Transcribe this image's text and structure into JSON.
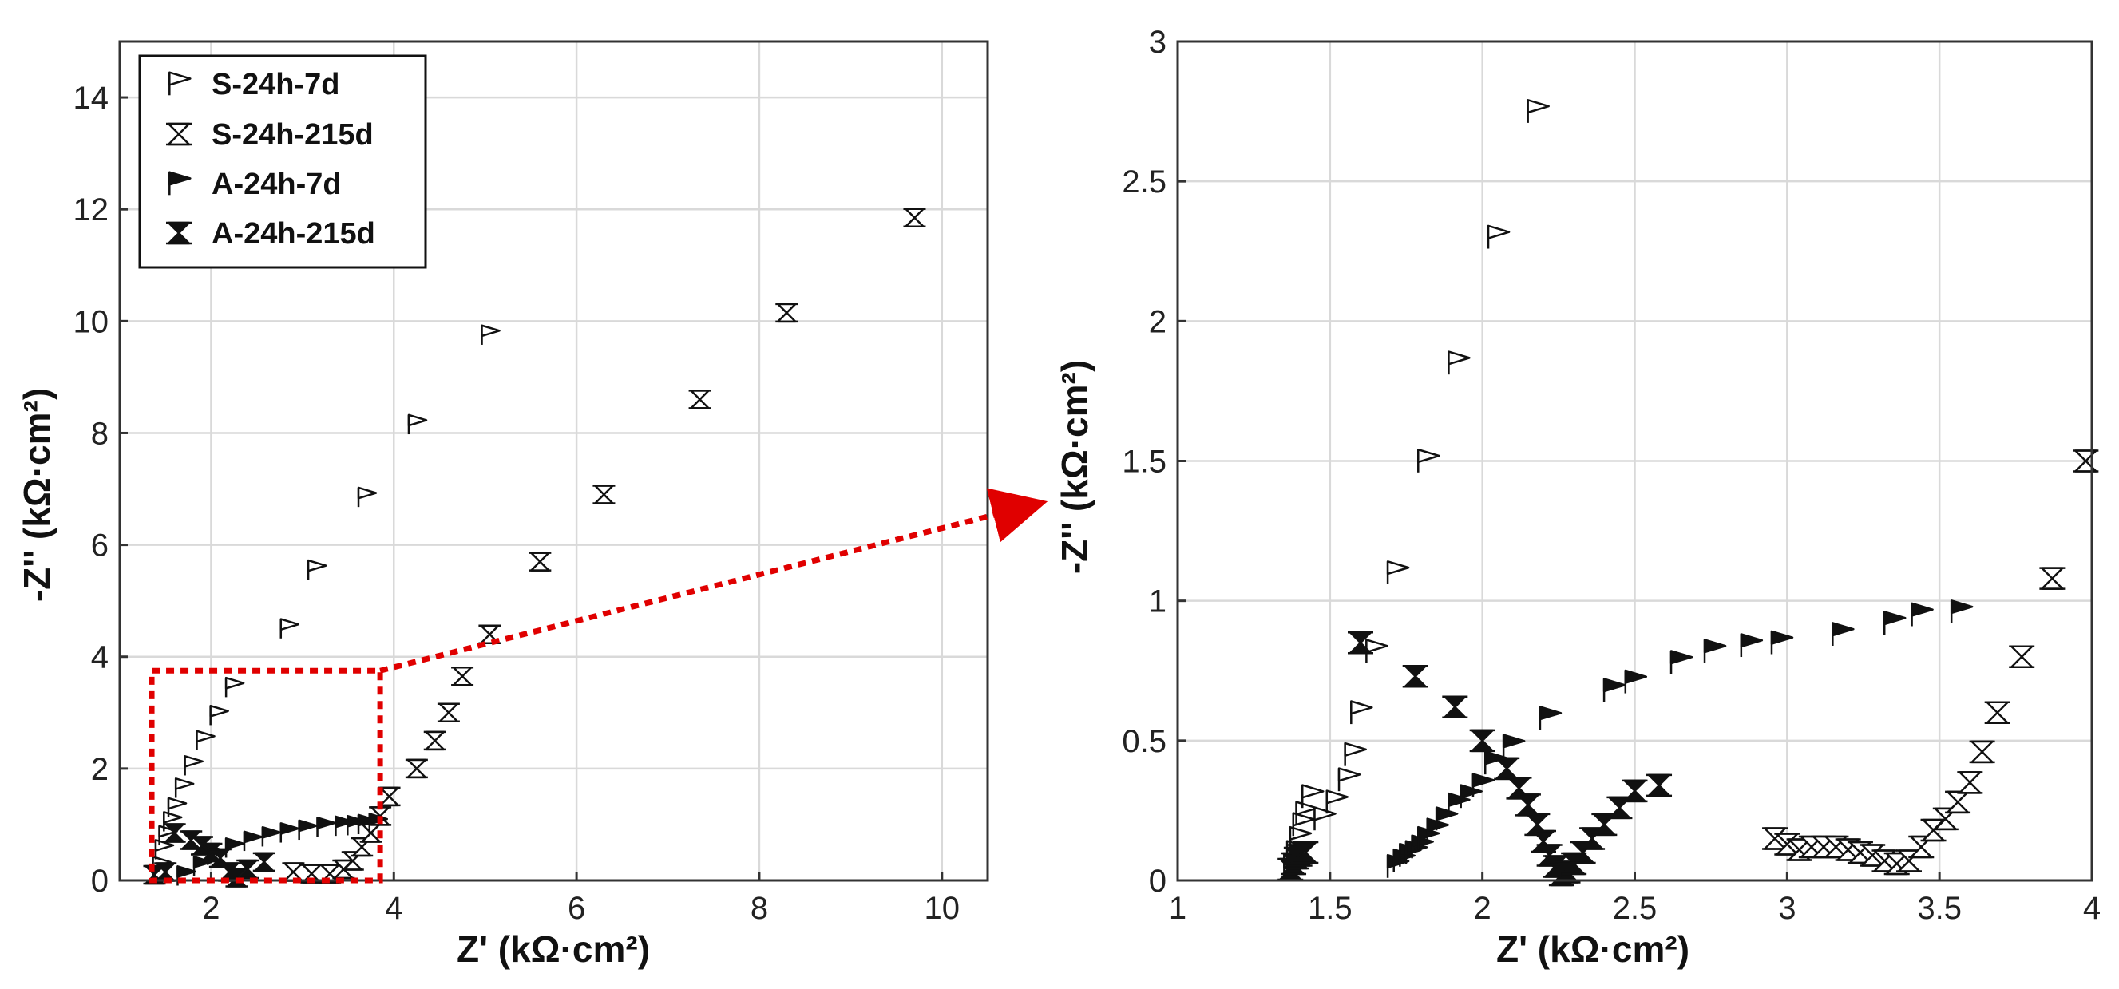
{
  "colors": {
    "grid": "#d9d9d9",
    "frame": "#333333",
    "marker": "#111111",
    "zoom": "#e00000"
  },
  "chart_data": [
    {
      "type": "scatter",
      "xlabel": "Z' (kΩ·cm²)",
      "ylabel": "-Z'' (kΩ·cm²)",
      "xlim": [
        1.0,
        10.5
      ],
      "ylim": [
        0,
        15
      ],
      "xticks": [
        2,
        4,
        6,
        8,
        10
      ],
      "yticks": [
        0,
        2,
        4,
        6,
        8,
        10,
        12,
        14
      ],
      "grid": true,
      "legend": "top-left",
      "zoom_box": {
        "x": [
          1.35,
          3.85
        ],
        "y": [
          0,
          3.75
        ]
      },
      "series": [
        {
          "name": "S-24h-7d",
          "marker": "flag-open",
          "points": [
            [
              1.45,
              0.25
            ],
            [
              1.48,
              0.55
            ],
            [
              1.52,
              0.8
            ],
            [
              1.57,
              1.05
            ],
            [
              1.62,
              1.3
            ],
            [
              1.7,
              1.65
            ],
            [
              1.8,
              2.05
            ],
            [
              1.93,
              2.5
            ],
            [
              2.08,
              2.95
            ],
            [
              2.25,
              3.45
            ],
            [
              2.85,
              4.5
            ],
            [
              3.15,
              5.55
            ],
            [
              3.7,
              6.85
            ],
            [
              4.25,
              8.15
            ],
            [
              5.05,
              9.75
            ]
          ]
        },
        {
          "name": "S-24h-215d",
          "marker": "hourglass-open",
          "points": [
            [
              2.9,
              0.15
            ],
            [
              3.1,
              0.12
            ],
            [
              3.3,
              0.12
            ],
            [
              3.45,
              0.2
            ],
            [
              3.55,
              0.35
            ],
            [
              3.65,
              0.6
            ],
            [
              3.75,
              0.85
            ],
            [
              3.85,
              1.15
            ],
            [
              3.95,
              1.5
            ],
            [
              4.25,
              2.0
            ],
            [
              4.45,
              2.5
            ],
            [
              4.6,
              3.0
            ],
            [
              4.75,
              3.65
            ],
            [
              5.05,
              4.4
            ],
            [
              5.6,
              5.7
            ],
            [
              6.3,
              6.9
            ],
            [
              7.35,
              8.6
            ],
            [
              8.3,
              10.15
            ],
            [
              9.7,
              11.85
            ]
          ]
        },
        {
          "name": "A-24h-7d",
          "marker": "flag-filled",
          "points": [
            [
              1.72,
              0.08
            ],
            [
              1.9,
              0.25
            ],
            [
              2.05,
              0.45
            ],
            [
              2.25,
              0.58
            ],
            [
              2.45,
              0.7
            ],
            [
              2.65,
              0.78
            ],
            [
              2.85,
              0.85
            ],
            [
              3.05,
              0.9
            ],
            [
              3.25,
              0.95
            ],
            [
              3.45,
              0.97
            ],
            [
              3.58,
              0.98
            ],
            [
              3.7,
              1.0
            ],
            [
              3.82,
              1.02
            ]
          ]
        },
        {
          "name": "A-24h-215d",
          "marker": "hourglass-filled",
          "points": [
            [
              1.38,
              0.1
            ],
            [
              1.5,
              0.15
            ],
            [
              1.6,
              0.85
            ],
            [
              1.78,
              0.72
            ],
            [
              1.9,
              0.62
            ],
            [
              2.0,
              0.5
            ],
            [
              2.1,
              0.4
            ],
            [
              2.2,
              0.15
            ],
            [
              2.28,
              0.05
            ],
            [
              2.4,
              0.2
            ],
            [
              2.58,
              0.33
            ]
          ]
        }
      ]
    },
    {
      "type": "scatter",
      "xlabel": "Z' (kΩ·cm²)",
      "ylabel": "-Z'' (kΩ·cm²)",
      "xlim": [
        1,
        4
      ],
      "ylim": [
        0,
        3
      ],
      "xticks": [
        1,
        1.5,
        2,
        2.5,
        3,
        3.5,
        4
      ],
      "yticks": [
        0,
        0.5,
        1,
        1.5,
        2,
        2.5,
        3
      ],
      "grid": true,
      "series": [
        {
          "name": "S-24h-7d",
          "marker": "flag-open",
          "points": [
            [
              1.38,
              0.05
            ],
            [
              1.39,
              0.1
            ],
            [
              1.4,
              0.15
            ],
            [
              1.41,
              0.2
            ],
            [
              1.42,
              0.24
            ],
            [
              1.44,
              0.3
            ],
            [
              1.48,
              0.22
            ],
            [
              1.52,
              0.28
            ],
            [
              1.56,
              0.36
            ],
            [
              1.58,
              0.45
            ],
            [
              1.6,
              0.6
            ],
            [
              1.65,
              0.82
            ],
            [
              1.72,
              1.1
            ],
            [
              1.82,
              1.5
            ],
            [
              1.92,
              1.85
            ],
            [
              2.05,
              2.3
            ],
            [
              2.18,
              2.75
            ]
          ]
        },
        {
          "name": "S-24h-215d",
          "marker": "hourglass-open",
          "points": [
            [
              2.96,
              0.15
            ],
            [
              3.0,
              0.13
            ],
            [
              3.04,
              0.11
            ],
            [
              3.08,
              0.12
            ],
            [
              3.12,
              0.12
            ],
            [
              3.16,
              0.12
            ],
            [
              3.2,
              0.11
            ],
            [
              3.24,
              0.1
            ],
            [
              3.28,
              0.09
            ],
            [
              3.32,
              0.07
            ],
            [
              3.36,
              0.06
            ],
            [
              3.4,
              0.07
            ],
            [
              3.44,
              0.12
            ],
            [
              3.48,
              0.18
            ],
            [
              3.52,
              0.22
            ],
            [
              3.56,
              0.28
            ],
            [
              3.6,
              0.35
            ],
            [
              3.64,
              0.46
            ],
            [
              3.69,
              0.6
            ],
            [
              3.77,
              0.8
            ],
            [
              3.87,
              1.08
            ],
            [
              3.98,
              1.5
            ]
          ]
        },
        {
          "name": "A-24h-7d",
          "marker": "flag-filled",
          "points": [
            [
              1.72,
              0.05
            ],
            [
              1.74,
              0.07
            ],
            [
              1.76,
              0.09
            ],
            [
              1.78,
              0.1
            ],
            [
              1.8,
              0.12
            ],
            [
              1.82,
              0.15
            ],
            [
              1.85,
              0.18
            ],
            [
              1.88,
              0.22
            ],
            [
              1.92,
              0.27
            ],
            [
              1.96,
              0.3
            ],
            [
              2.0,
              0.34
            ],
            [
              2.04,
              0.42
            ],
            [
              2.1,
              0.48
            ],
            [
              2.22,
              0.58
            ],
            [
              2.43,
              0.68
            ],
            [
              2.5,
              0.71
            ],
            [
              2.65,
              0.78
            ],
            [
              2.76,
              0.82
            ],
            [
              2.88,
              0.84
            ],
            [
              2.98,
              0.85
            ],
            [
              3.18,
              0.88
            ],
            [
              3.35,
              0.92
            ],
            [
              3.44,
              0.95
            ],
            [
              3.57,
              0.96
            ]
          ]
        },
        {
          "name": "A-24h-215d",
          "marker": "hourglass-filled",
          "points": [
            [
              1.37,
              0.04
            ],
            [
              1.38,
              0.06
            ],
            [
              1.39,
              0.08
            ],
            [
              1.4,
              0.09
            ],
            [
              1.42,
              0.1
            ],
            [
              1.6,
              0.85
            ],
            [
              1.78,
              0.73
            ],
            [
              1.91,
              0.62
            ],
            [
              2.0,
              0.5
            ],
            [
              2.08,
              0.4
            ],
            [
              2.12,
              0.33
            ],
            [
              2.15,
              0.27
            ],
            [
              2.18,
              0.2
            ],
            [
              2.2,
              0.14
            ],
            [
              2.22,
              0.09
            ],
            [
              2.24,
              0.05
            ],
            [
              2.26,
              0.02
            ],
            [
              2.28,
              0.03
            ],
            [
              2.3,
              0.06
            ],
            [
              2.33,
              0.1
            ],
            [
              2.36,
              0.15
            ],
            [
              2.4,
              0.2
            ],
            [
              2.45,
              0.26
            ],
            [
              2.5,
              0.32
            ],
            [
              2.58,
              0.34
            ]
          ]
        }
      ]
    }
  ]
}
